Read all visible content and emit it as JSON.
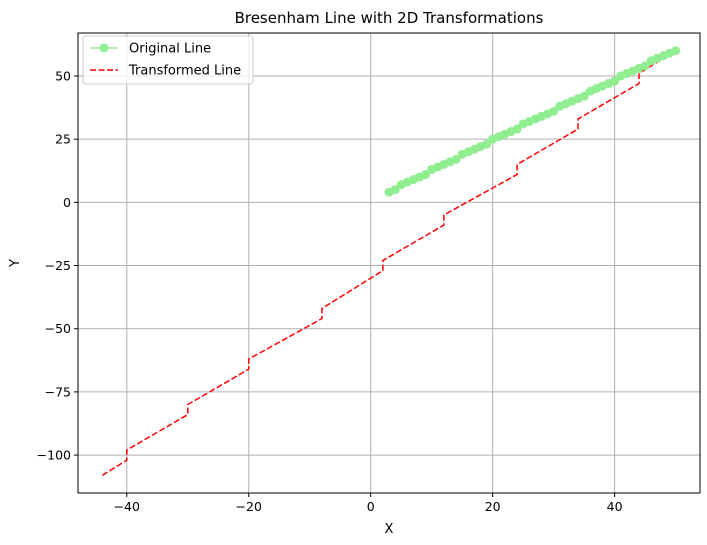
{
  "chart_data": {
    "type": "line",
    "title": "Bresenham Line with 2D Transformations",
    "xlabel": "X",
    "ylabel": "Y",
    "xlim": [
      -48,
      54
    ],
    "ylim": [
      -115,
      67
    ],
    "xticks": [
      -40,
      -20,
      0,
      20,
      40
    ],
    "xtick_labels": [
      "−40",
      "−20",
      "0",
      "20",
      "40"
    ],
    "yticks": [
      -100,
      -75,
      -50,
      -25,
      0,
      25,
      50
    ],
    "ytick_labels": [
      "−100",
      "−75",
      "−50",
      "−25",
      "0",
      "25",
      "50"
    ],
    "grid": true,
    "legend_position": "upper-left",
    "series": [
      {
        "name": "Original Line",
        "color": "#90ee90",
        "style": "solid-with-circle-markers",
        "x": [
          3,
          4,
          5,
          6,
          7,
          8,
          9,
          10,
          11,
          12,
          13,
          14,
          15,
          16,
          17,
          18,
          19,
          20,
          21,
          22,
          23,
          24,
          25,
          26,
          27,
          28,
          29,
          30,
          31,
          32,
          33,
          34,
          35,
          36,
          37,
          38,
          39,
          40,
          41,
          42,
          43,
          44,
          45,
          46,
          47,
          48,
          49,
          50
        ],
        "y": [
          4,
          5,
          7,
          8,
          9,
          10,
          11,
          13,
          14,
          15,
          16,
          17,
          19,
          20,
          21,
          22,
          23,
          25,
          26,
          27,
          28,
          29,
          31,
          32,
          33,
          34,
          35,
          36,
          38,
          39,
          40,
          41,
          42,
          44,
          45,
          46,
          47,
          48,
          50,
          51,
          52,
          53,
          54,
          56,
          57,
          58,
          59,
          60
        ]
      },
      {
        "name": "Transformed Line",
        "color": "#ff0000",
        "style": "dashed",
        "x": [
          -44,
          -40,
          -40,
          -30,
          -30,
          -20,
          -20,
          -8,
          -8,
          2,
          2,
          12,
          12,
          24,
          24,
          34,
          34,
          44,
          44,
          50
        ],
        "y": [
          -108,
          -102,
          -98,
          -84,
          -80,
          -66,
          -62,
          -46,
          -42,
          -27,
          -23,
          -9,
          -5,
          11,
          15,
          29,
          33,
          47,
          51,
          60
        ]
      }
    ]
  }
}
